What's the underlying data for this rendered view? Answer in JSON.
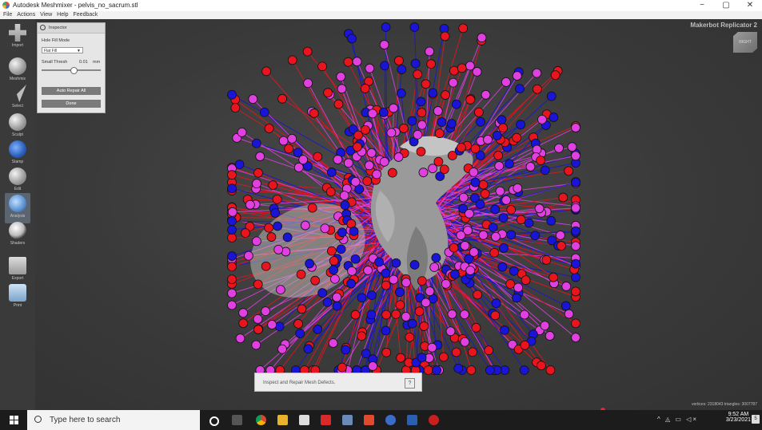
{
  "window": {
    "title": "Autodesk Meshmixer - pelvis_no_sacrum.stl",
    "minimize": "−",
    "maximize": "▢",
    "close": "✕"
  },
  "menu": [
    "File",
    "Actions",
    "View",
    "Help",
    "Feedback"
  ],
  "tools": [
    "Import",
    "Meshmix",
    "Select",
    "Sculpt",
    "Stamp",
    "Edit",
    "Analysis",
    "Shaders",
    "Export",
    "Print"
  ],
  "active_tool": "Analysis",
  "inspector": {
    "title": "Inspector",
    "hole_fill_label": "Hole Fill Mode",
    "hole_fill_value": "Flat Fill",
    "small_thresh_label": "Small Thresh",
    "small_thresh_value": "0.01",
    "small_thresh_unit": "mm",
    "slider_level": 0.5,
    "auto_repair_label": "Auto Repair All",
    "done_label": "Done"
  },
  "viewport": {
    "printer": "Makerbot Replicator 2",
    "cube_label": "RIGHT",
    "tip": "Inspect and Repair Mesh Defects.",
    "tip_help": "?",
    "stats": "vertices: 2318043  triangles: 3007787"
  },
  "taskbar": {
    "search_placeholder": "Type here to search",
    "time": "9:52 AM",
    "date": "3/23/2021",
    "notifications": "5"
  },
  "colors": {
    "defect_red": "#e8141e",
    "defect_blue": "#1a14d6",
    "defect_magenta": "#e040e0",
    "mesh": "#9a9a9a"
  }
}
